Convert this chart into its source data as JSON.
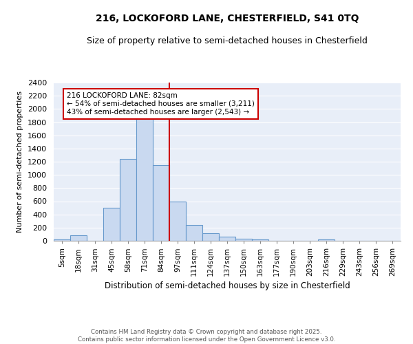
{
  "title1": "216, LOCKOFORD LANE, CHESTERFIELD, S41 0TQ",
  "title2": "Size of property relative to semi-detached houses in Chesterfield",
  "xlabel": "Distribution of semi-detached houses by size in Chesterfield",
  "ylabel": "Number of semi-detached properties",
  "footer1": "Contains HM Land Registry data © Crown copyright and database right 2025.",
  "footer2": "Contains public sector information licensed under the Open Government Licence v3.0.",
  "bin_labels": [
    "5sqm",
    "18sqm",
    "31sqm",
    "45sqm",
    "58sqm",
    "71sqm",
    "84sqm",
    "97sqm",
    "111sqm",
    "124sqm",
    "137sqm",
    "150sqm",
    "163sqm",
    "177sqm",
    "190sqm",
    "203sqm",
    "216sqm",
    "229sqm",
    "243sqm",
    "256sqm",
    "269sqm"
  ],
  "bar_values": [
    20,
    80,
    0,
    500,
    1240,
    1880,
    1150,
    590,
    245,
    110,
    60,
    35,
    20,
    0,
    0,
    0,
    20,
    0,
    0,
    0,
    0
  ],
  "bar_color": "#c9d9f0",
  "bar_edge_color": "#6699cc",
  "vline_color": "#cc0000",
  "vline_pos": 6.5,
  "annotation_text": "216 LOCKOFORD LANE: 82sqm\n← 54% of semi-detached houses are smaller (3,211)\n43% of semi-detached houses are larger (2,543) →",
  "annotation_box_color": "#cc0000",
  "ylim": [
    0,
    2400
  ],
  "yticks": [
    0,
    200,
    400,
    600,
    800,
    1000,
    1200,
    1400,
    1600,
    1800,
    2000,
    2200,
    2400
  ],
  "grid_color": "#ffffff",
  "bg_color": "#e8eef8",
  "title1_fontsize": 10,
  "title2_fontsize": 9,
  "ylabel_fontsize": 8,
  "xlabel_fontsize": 8.5,
  "footer_fontsize": 6.2,
  "tick_fontsize": 7.5,
  "ytick_fontsize": 8
}
